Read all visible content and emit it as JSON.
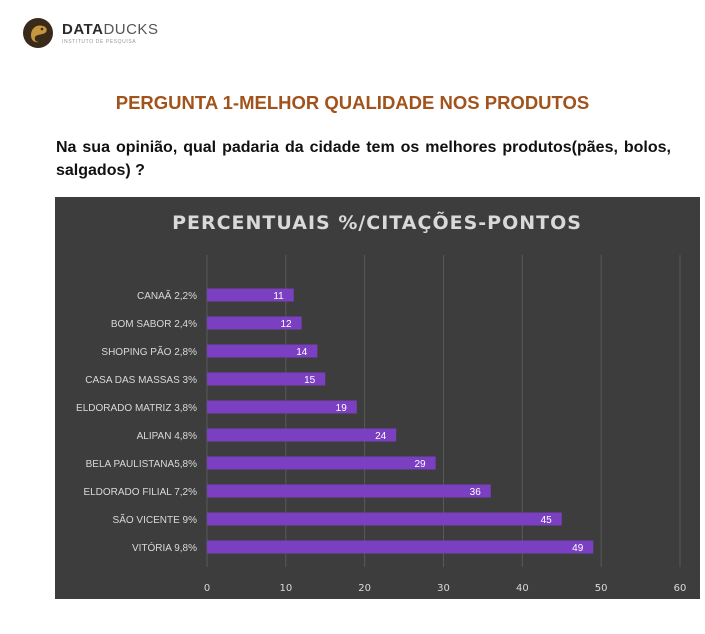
{
  "logo": {
    "brand_bold": "DATA",
    "brand_light": "DUCKS",
    "tagline": "INSTITUTO DE PESQUISA"
  },
  "question": {
    "title": "PERGUNTA 1-MELHOR QUALIDADE NOS PRODUTOS",
    "text": "Na sua opinião, qual padaria da cidade tem os melhores produtos(pães, bolos, salgados) ?"
  },
  "colors": {
    "title": "#a2521b",
    "chart_bg": "#3d3d3d",
    "bar": "#7b3fc2",
    "grid": "#595959",
    "text": "#d9d9d9"
  },
  "chart_data": {
    "type": "bar",
    "orientation": "horizontal",
    "title": "PERCENTUAIS %/CITAÇÕES-PONTOS",
    "categories": [
      "CANAÃ 2,2%",
      "BOM SABOR 2,4%",
      "SHOPING PÃO 2,8%",
      "CASA DAS MASSAS 3%",
      "ELDORADO MATRIZ 3,8%",
      "ALIPAN 4,8%",
      "BELA PAULISTANA5,8%",
      "ELDORADO FILIAL 7,2%",
      "SÃO VICENTE 9%",
      "VITÓRIA 9,8%"
    ],
    "values": [
      11,
      12,
      14,
      15,
      19,
      24,
      29,
      36,
      45,
      49
    ],
    "xlim": [
      0,
      60
    ],
    "xticks": [
      0,
      10,
      20,
      30,
      40,
      50,
      60
    ],
    "grid": true,
    "data_labels": true
  }
}
